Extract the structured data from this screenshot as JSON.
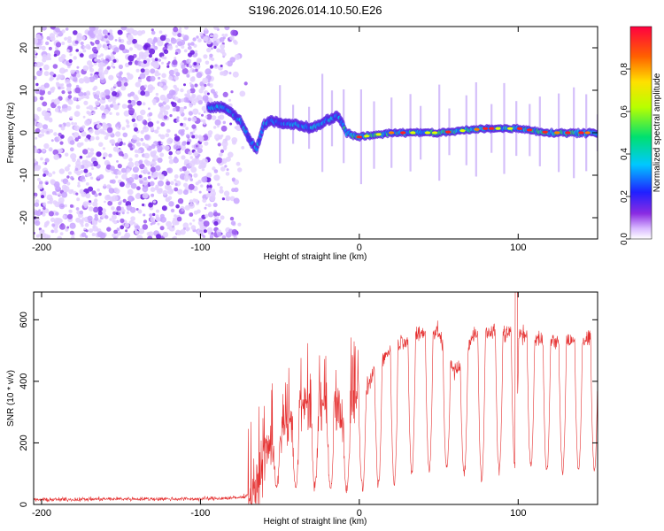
{
  "title": "S196.2026.014.10.50.E26",
  "chart_data": [
    {
      "type": "heatmap",
      "name": "spectrogram",
      "xlabel": "Height of straight line (km)",
      "ylabel": "Frequency (Hz)",
      "xlim": [
        -205,
        150
      ],
      "ylim": [
        -25,
        25
      ],
      "xticks": [
        -200,
        -100,
        0,
        100
      ],
      "yticks": [
        -20,
        -10,
        0,
        10,
        20
      ],
      "colorbar": {
        "label": "Normalized spectral amplitude",
        "range": [
          0,
          1
        ],
        "ticks": [
          0.0,
          0.2,
          0.4,
          0.6,
          0.8
        ]
      },
      "features": {
        "noise_region_x": [
          -205,
          -70
        ],
        "signal_path": [
          [
            -95,
            6
          ],
          [
            -85,
            6
          ],
          [
            -75,
            3
          ],
          [
            -70,
            -1
          ],
          [
            -65,
            -4
          ],
          [
            -60,
            2
          ],
          [
            -55,
            3
          ],
          [
            -50,
            2
          ],
          [
            -40,
            2
          ],
          [
            -30,
            1
          ],
          [
            -20,
            3
          ],
          [
            -13,
            4
          ],
          [
            -8,
            0
          ],
          [
            0,
            -1
          ],
          [
            20,
            0
          ],
          [
            50,
            0
          ],
          [
            80,
            1
          ],
          [
            100,
            1
          ],
          [
            120,
            0
          ],
          [
            150,
            0
          ]
        ],
        "peak_frequency_hz": 0
      }
    },
    {
      "type": "line",
      "name": "snr",
      "xlabel": "Height of straight line (km)",
      "ylabel": "SNR (10 * v/v)",
      "xlim": [
        -205,
        150
      ],
      "ylim": [
        0,
        690
      ],
      "xticks": [
        -200,
        -100,
        0,
        100
      ],
      "yticks": [
        0,
        200,
        400,
        600
      ],
      "series": [
        {
          "name": "SNR",
          "color": "#e53030",
          "envelope": {
            "x": [
              -205,
              -150,
              -100,
              -75,
              -65,
              -60,
              -55,
              -50,
              -45,
              -40,
              -35,
              -30,
              -25,
              -20,
              -15,
              -10,
              -5,
              0,
              5,
              10,
              15,
              20,
              30,
              40,
              50,
              55,
              60,
              65,
              70,
              75,
              80,
              85,
              90,
              95,
              100,
              105,
              110,
              120,
              130,
              140,
              150
            ],
            "y": [
              15,
              18,
              18,
              22,
              40,
              150,
              200,
              220,
              260,
              290,
              310,
              320,
              330,
              290,
              320,
              280,
              330,
              350,
              380,
              440,
              470,
              510,
              540,
              560,
              560,
              470,
              430,
              450,
              540,
              560,
              560,
              570,
              560,
              550,
              560,
              550,
              540,
              530,
              530,
              530,
              540
            ]
          },
          "dips": {
            "x": [
              -52,
              -40,
              -28,
              -18,
              -8,
              2,
              12,
              22,
              33,
              44,
              55,
              66,
              77,
              88,
              98,
              108,
              118,
              128,
              138,
              148
            ],
            "y": [
              60,
              55,
              60,
              50,
              45,
              55,
              60,
              70,
              100,
              110,
              120,
              100,
              80,
              110,
              130,
              120,
              110,
              110,
              110,
              110
            ]
          }
        }
      ]
    }
  ]
}
